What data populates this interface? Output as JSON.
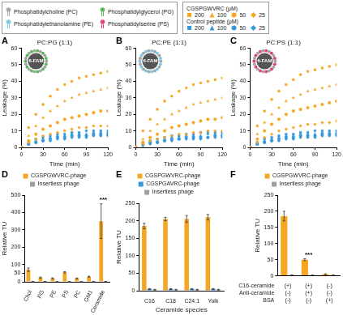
{
  "key": {
    "lipids": [
      {
        "name": "Phosphatidylcholine (PC)",
        "color": "#a6a6a6"
      },
      {
        "name": "Phosphatidylglycerol (PG)",
        "color": "#5cb85c"
      },
      {
        "name": "Phosphatidylethanolamine (PE)",
        "color": "#7ec8e3"
      },
      {
        "name": "Phosphatidylserine (PS)",
        "color": "#e0457b"
      }
    ],
    "peptides": [
      {
        "title": "CGSPGWVRC (μM)",
        "color": "#f5a623"
      },
      {
        "title": "Control peptide (μM)",
        "color": "#3498db"
      }
    ]
  },
  "chart_data": [
    {
      "panel": "A",
      "type": "scatter",
      "title": "PC:PG (1:1)",
      "inset": {
        "text": "6-FAM",
        "colors": [
          "#a6a6a6",
          "#5cb85c"
        ]
      },
      "x_label": "Time (min)",
      "y_label": "Leakage (%)",
      "x": [
        0,
        10,
        20,
        30,
        40,
        50,
        60,
        70,
        80,
        90,
        100,
        110,
        120
      ],
      "xlim": [
        0,
        120
      ],
      "xticks": [
        0,
        30,
        60,
        90,
        120
      ],
      "ylim": [
        0,
        60
      ],
      "yticks": [
        0,
        10,
        20,
        30,
        40,
        50,
        60
      ],
      "grid": false,
      "series": [
        {
          "name": "200",
          "color": "#f5a623",
          "marker": "square",
          "values": [
            0,
            12,
            20,
            26,
            31,
            35,
            38,
            40,
            42,
            43,
            44,
            45,
            46
          ]
        },
        {
          "name": "100",
          "color": "#f5a623",
          "marker": "triangle",
          "values": [
            0,
            7,
            13,
            18,
            22,
            25,
            28,
            30,
            32,
            33,
            34,
            35,
            36
          ]
        },
        {
          "name": "50",
          "color": "#f5a623",
          "marker": "circle",
          "values": [
            0,
            4,
            8,
            11,
            13,
            15,
            17,
            18,
            19,
            20,
            21,
            22,
            22
          ]
        },
        {
          "name": "25",
          "color": "#f5a623",
          "marker": "diamond",
          "values": [
            0,
            3,
            5,
            7,
            8,
            9,
            10,
            11,
            12,
            12,
            13,
            13,
            13
          ]
        },
        {
          "name": "200",
          "color": "#3498db",
          "marker": "square",
          "values": [
            0,
            3,
            5,
            6,
            7,
            8,
            8,
            9,
            9,
            10,
            10,
            10,
            10
          ]
        },
        {
          "name": "100",
          "color": "#3498db",
          "marker": "triangle",
          "values": [
            0,
            2,
            4,
            5,
            6,
            7,
            7,
            8,
            8,
            8,
            9,
            9,
            9
          ]
        },
        {
          "name": "50",
          "color": "#3498db",
          "marker": "circle",
          "values": [
            0,
            2,
            3,
            4,
            5,
            6,
            6,
            7,
            7,
            7,
            8,
            8,
            8
          ]
        },
        {
          "name": "25",
          "color": "#3498db",
          "marker": "diamond",
          "values": [
            0,
            2,
            3,
            4,
            4,
            5,
            5,
            6,
            6,
            6,
            7,
            7,
            7
          ]
        }
      ]
    },
    {
      "panel": "B",
      "type": "scatter",
      "title": "PC:PE (1:1)",
      "inset": {
        "text": "6-FAM",
        "colors": [
          "#a6a6a6",
          "#7ec8e3"
        ]
      },
      "x_label": "Time (min)",
      "y_label": "Leakage (%)",
      "x": [
        0,
        10,
        20,
        30,
        40,
        50,
        60,
        70,
        80,
        90,
        100,
        110,
        120
      ],
      "xlim": [
        0,
        120
      ],
      "xticks": [
        0,
        30,
        60,
        90,
        120
      ],
      "ylim": [
        0,
        60
      ],
      "yticks": [
        0,
        10,
        20,
        30,
        40,
        50,
        60
      ],
      "grid": false,
      "series": [
        {
          "name": "200",
          "color": "#f5a623",
          "marker": "square",
          "values": [
            0,
            10,
            17,
            23,
            28,
            31,
            34,
            36,
            38,
            39,
            40,
            41,
            42
          ]
        },
        {
          "name": "100",
          "color": "#f5a623",
          "marker": "triangle",
          "values": [
            0,
            5,
            10,
            14,
            17,
            20,
            22,
            24,
            26,
            27,
            28,
            29,
            30
          ]
        },
        {
          "name": "50",
          "color": "#f5a623",
          "marker": "circle",
          "values": [
            0,
            3,
            6,
            8,
            10,
            12,
            13,
            14,
            15,
            16,
            17,
            17,
            18
          ]
        },
        {
          "name": "25",
          "color": "#f5a623",
          "marker": "diamond",
          "values": [
            0,
            2,
            4,
            5,
            6,
            7,
            8,
            8,
            9,
            9,
            10,
            10,
            10
          ]
        },
        {
          "name": "200",
          "color": "#3498db",
          "marker": "square",
          "values": [
            0,
            3,
            4,
            5,
            6,
            7,
            7,
            8,
            8,
            9,
            9,
            9,
            9
          ]
        },
        {
          "name": "100",
          "color": "#3498db",
          "marker": "triangle",
          "values": [
            0,
            2,
            3,
            4,
            5,
            6,
            6,
            7,
            7,
            7,
            8,
            8,
            8
          ]
        },
        {
          "name": "50",
          "color": "#3498db",
          "marker": "circle",
          "values": [
            0,
            2,
            3,
            3,
            4,
            5,
            5,
            6,
            6,
            6,
            6,
            7,
            7
          ]
        },
        {
          "name": "25",
          "color": "#3498db",
          "marker": "diamond",
          "values": [
            0,
            1,
            2,
            3,
            4,
            4,
            5,
            5,
            5,
            5,
            6,
            6,
            6
          ]
        }
      ]
    },
    {
      "panel": "C",
      "type": "scatter",
      "title": "PC:PS (1:1)",
      "inset": {
        "text": "6-FAM",
        "colors": [
          "#a6a6a6",
          "#e0457b"
        ]
      },
      "x_label": "Time (min)",
      "y_label": "Leakage (%)",
      "x": [
        0,
        10,
        20,
        30,
        40,
        50,
        60,
        70,
        80,
        90,
        100,
        110,
        120
      ],
      "xlim": [
        0,
        120
      ],
      "xticks": [
        0,
        30,
        60,
        90,
        120
      ],
      "ylim": [
        0,
        60
      ],
      "yticks": [
        0,
        10,
        20,
        30,
        40,
        50,
        60
      ],
      "grid": false,
      "series": [
        {
          "name": "200",
          "color": "#f5a623",
          "marker": "square",
          "values": [
            0,
            13,
            22,
            29,
            34,
            38,
            41,
            44,
            46,
            47,
            48,
            49,
            50
          ]
        },
        {
          "name": "100",
          "color": "#f5a623",
          "marker": "triangle",
          "values": [
            0,
            8,
            15,
            20,
            24,
            28,
            30,
            32,
            34,
            35,
            36,
            37,
            38
          ]
        },
        {
          "name": "50",
          "color": "#f5a623",
          "marker": "circle",
          "values": [
            0,
            5,
            10,
            14,
            17,
            20,
            22,
            23,
            24,
            25,
            26,
            27,
            28
          ]
        },
        {
          "name": "25",
          "color": "#f5a623",
          "marker": "diamond",
          "values": [
            0,
            3,
            6,
            8,
            10,
            11,
            12,
            13,
            14,
            14,
            15,
            15,
            16
          ]
        },
        {
          "name": "200",
          "color": "#3498db",
          "marker": "square",
          "values": [
            0,
            3,
            5,
            6,
            7,
            8,
            8,
            9,
            9,
            10,
            10,
            10,
            10
          ]
        },
        {
          "name": "100",
          "color": "#3498db",
          "marker": "triangle",
          "values": [
            0,
            2,
            4,
            5,
            6,
            7,
            7,
            8,
            8,
            8,
            9,
            9,
            9
          ]
        },
        {
          "name": "50",
          "color": "#3498db",
          "marker": "circle",
          "values": [
            0,
            2,
            3,
            4,
            5,
            6,
            6,
            7,
            7,
            7,
            8,
            8,
            8
          ]
        },
        {
          "name": "25",
          "color": "#3498db",
          "marker": "diamond",
          "values": [
            0,
            2,
            3,
            4,
            4,
            5,
            5,
            6,
            6,
            6,
            7,
            7,
            7
          ]
        }
      ]
    },
    {
      "panel": "D",
      "type": "bar",
      "y_label": "Relative TU",
      "categories": [
        "Chol",
        "PG",
        "PE",
        "PS",
        "PC",
        "GM1",
        "Ceramide"
      ],
      "ylim": [
        0,
        500
      ],
      "yticks": [
        0,
        50,
        100,
        200,
        300,
        400,
        500
      ],
      "grid": false,
      "legend": "top",
      "series": [
        {
          "name": "CGSPGWVRC-phage",
          "color": "#f5a623",
          "values": [
            70,
            25,
            20,
            55,
            20,
            30,
            350
          ],
          "errors": [
            10,
            3,
            3,
            4,
            2,
            3,
            100
          ]
        },
        {
          "name": "Insertless phage",
          "color": "#9e9e9e",
          "values": [
            1,
            1,
            1,
            1,
            1,
            1,
            2
          ],
          "errors": [
            0.5,
            0.5,
            0.5,
            0.5,
            0.5,
            0.5,
            0.5
          ]
        }
      ],
      "annotations": [
        {
          "index": 6,
          "text": "***"
        }
      ]
    },
    {
      "panel": "E",
      "type": "bar",
      "x_label": "Ceramide species",
      "y_label": "Relative TU",
      "categories": [
        "C16",
        "C18",
        "C24:1",
        "Yolk"
      ],
      "ylim": [
        0,
        250
      ],
      "yticks": [
        0,
        50,
        100,
        150,
        200,
        250
      ],
      "grid": false,
      "legend": "top",
      "series": [
        {
          "name": "CGSPGWVRC-phage",
          "color": "#f5a623",
          "values": [
            185,
            205,
            205,
            210
          ],
          "errors": [
            8,
            5,
            10,
            8
          ]
        },
        {
          "name": "CGSPGAVRC-phage",
          "color": "#3498db",
          "values": [
            5,
            5,
            5,
            5
          ],
          "errors": [
            1,
            1,
            1,
            1
          ]
        },
        {
          "name": "Insertless phage",
          "color": "#9e9e9e",
          "values": [
            3,
            3,
            3,
            3
          ],
          "errors": [
            1,
            1,
            1,
            1
          ]
        }
      ]
    },
    {
      "panel": "F",
      "type": "bar",
      "y_label": "Relative TU",
      "categories": [
        null,
        null,
        null
      ],
      "ylim": [
        0,
        250
      ],
      "yticks": [
        0,
        50,
        100,
        150,
        200,
        250
      ],
      "grid": false,
      "legend": "top",
      "series": [
        {
          "name": "CGSPGWVRC-phage",
          "color": "#f5a623",
          "values": [
            185,
            50,
            5
          ],
          "errors": [
            15,
            3,
            1
          ]
        },
        {
          "name": "Insertless phage",
          "color": "#9e9e9e",
          "values": [
            2,
            2,
            2
          ],
          "errors": [
            0.5,
            0.5,
            0.5
          ]
        }
      ],
      "annotations": [
        {
          "index": 1,
          "text": "***"
        }
      ],
      "conditions": [
        {
          "name": "C16-ceramide",
          "values": [
            "(+)",
            "(+)",
            "(-)"
          ]
        },
        {
          "name": "Anti-ceramide",
          "values": [
            "(-)",
            "(+)",
            "(-)"
          ]
        },
        {
          "name": "BSA",
          "values": [
            "(-)",
            "(-)",
            "(+)"
          ]
        }
      ]
    }
  ]
}
